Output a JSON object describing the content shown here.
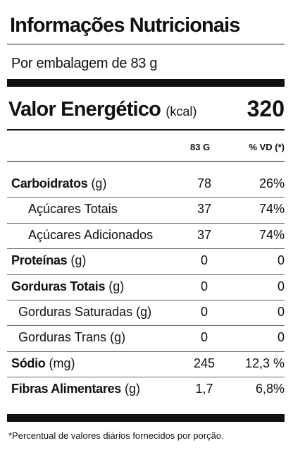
{
  "header": {
    "title": "Informações Nutricionais",
    "serving": "Por embalagem de 83 g"
  },
  "energy": {
    "label": "Valor Energético",
    "unit": "(kcal)",
    "value": "320"
  },
  "columns": {
    "amount": "83 G",
    "vd": "% VD (*)"
  },
  "rows": [
    {
      "name": "Carboidratos",
      "unit": "(g)",
      "amount": "78",
      "vd": "26%",
      "sub": [
        {
          "name": "Açúcares Totais",
          "amount": "37",
          "vd": "74%"
        },
        {
          "name": "Açúcares Adicionados",
          "amount": "37",
          "vd": "74%"
        }
      ]
    },
    {
      "name": "Proteínas",
      "unit": "(g)",
      "amount": "0",
      "vd": "0"
    },
    {
      "name": "Gorduras Totais",
      "unit": "(g)",
      "amount": "0",
      "vd": "0",
      "sub": [
        {
          "name": "Gorduras Saturadas",
          "unit": "(g)",
          "amount": "0",
          "vd": "0"
        },
        {
          "name": "Gorduras Trans",
          "unit": "(g)",
          "amount": "0",
          "vd": "0"
        }
      ]
    },
    {
      "name": "Sódio",
      "unit": "(mg)",
      "amount": "245",
      "vd": "12,3 %"
    },
    {
      "name": "Fibras Alimentares",
      "unit": "(g)",
      "amount": "1,7",
      "vd": "6,8%"
    }
  ],
  "footnote": "*Percentual de valores diários fornecidos por porção."
}
